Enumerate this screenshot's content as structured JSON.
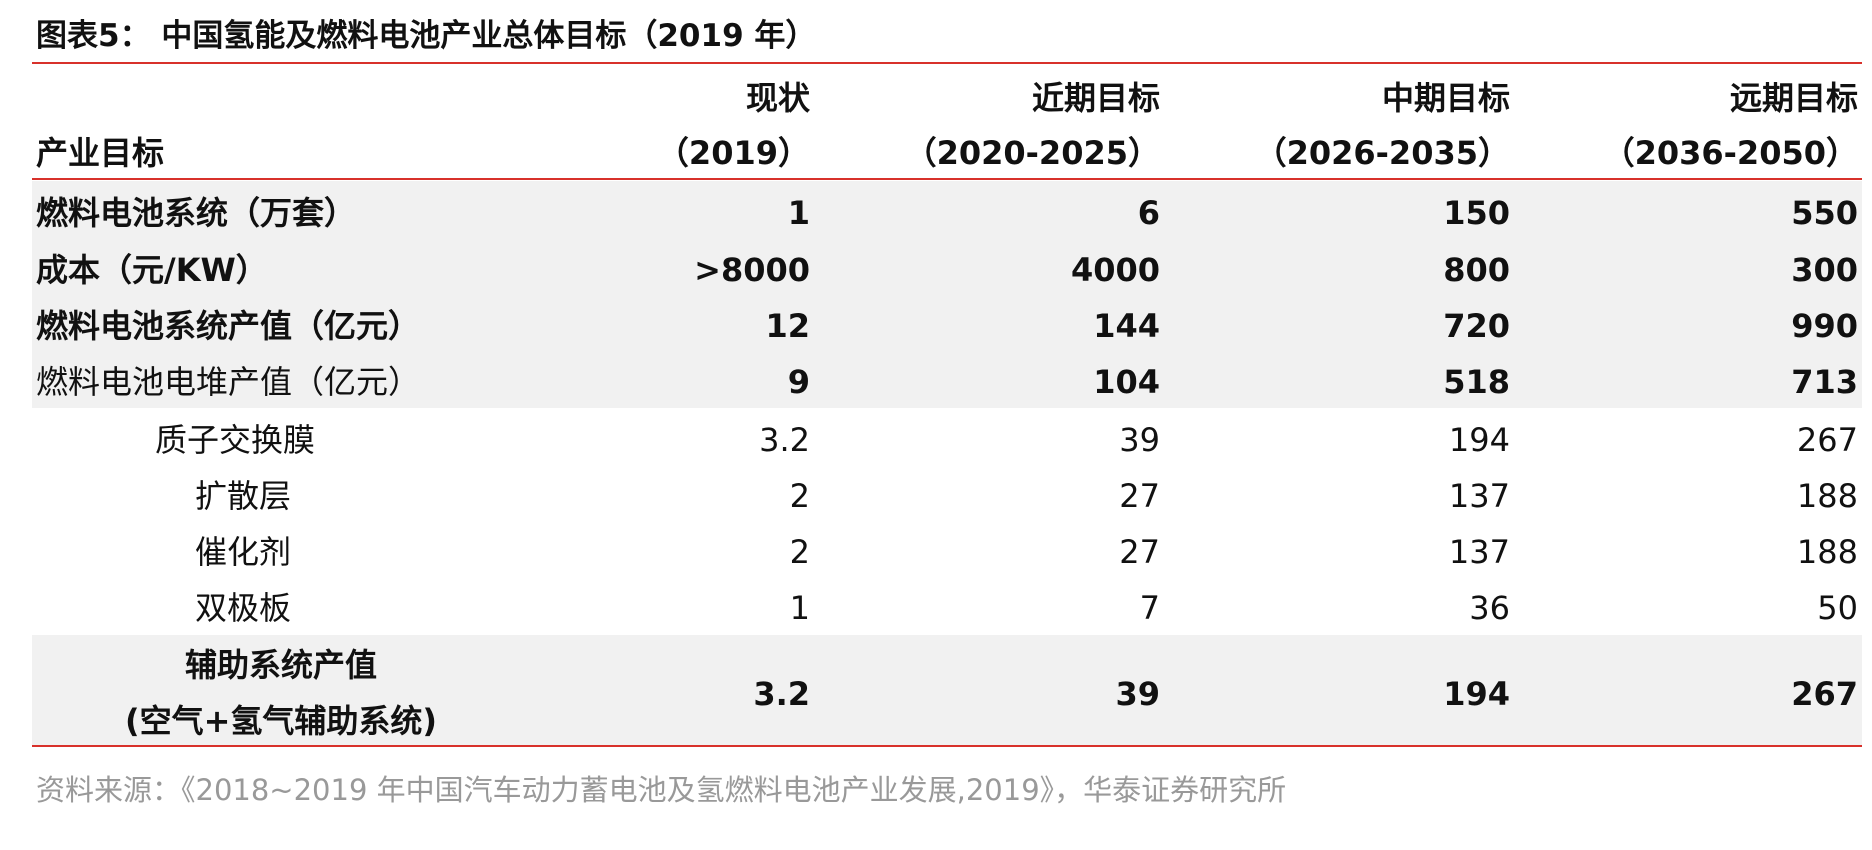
{
  "title": "图表5：  中国氢能及燃料电池产业总体目标（2019 年）",
  "table": {
    "header": {
      "label": "产业目标",
      "columns": [
        [
          "现状",
          "（2019）"
        ],
        [
          "近期目标",
          "（2020-2025）"
        ],
        [
          "中期目标",
          "（2026-2035）"
        ],
        [
          "远期目标",
          "（2036-2050）"
        ]
      ]
    },
    "rows": [
      {
        "label": "燃料电池系统（万套）",
        "values": [
          "1",
          "6",
          "150",
          "550"
        ]
      },
      {
        "label": "成本（元/KW）",
        "values": [
          ">8000",
          "4000",
          "800",
          "300"
        ]
      },
      {
        "label": "燃料电池系统产值（亿元）",
        "values": [
          "12",
          "144",
          "720",
          "990"
        ]
      },
      {
        "label": "燃料电池电堆产值（亿元）",
        "values": [
          "9",
          "104",
          "518",
          "713"
        ]
      },
      {
        "label": "质子交换膜",
        "values": [
          "3.2",
          "39",
          "194",
          "267"
        ]
      },
      {
        "label": "扩散层",
        "values": [
          "2",
          "27",
          "137",
          "188"
        ]
      },
      {
        "label": "催化剂",
        "values": [
          "2",
          "27",
          "137",
          "188"
        ]
      },
      {
        "label": "双极板",
        "values": [
          "1",
          "7",
          "36",
          "50"
        ]
      },
      {
        "label": [
          "辅助系统产值",
          "(空气+氢气辅助系统)"
        ],
        "values": [
          "3.2",
          "39",
          "194",
          "267"
        ]
      }
    ]
  },
  "source": "资料来源：《2018~2019 年中国汽车动力蓄电池及氢燃料电池产业发展,2019》，华泰证券研究所"
}
